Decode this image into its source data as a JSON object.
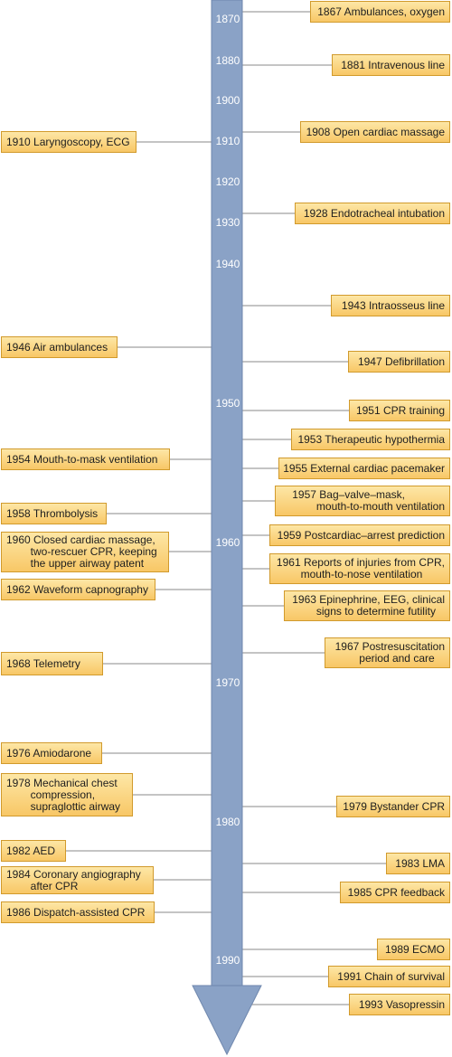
{
  "timeline": {
    "start_year": 1870,
    "end_year": 1990,
    "colors": {
      "axis": "#8aa2c6",
      "axis_edge": "#6f87ad",
      "box_fill": "#f9d27c",
      "box_border": "#d19a2c",
      "connector": "#8a8a8a"
    },
    "decade_labels": [
      "1870",
      "1880",
      "1900",
      "1910",
      "1920",
      "1930",
      "1940",
      "1950",
      "1960",
      "1970",
      "1980",
      "1990"
    ],
    "events_right": [
      {
        "text": "1867 Ambulances, oxygen"
      },
      {
        "text": "1881 Intravenous line"
      },
      {
        "text": "1908 Open cardiac massage"
      },
      {
        "text": "1928 Endotracheal intubation"
      },
      {
        "text": "1943 Intraosseus line"
      },
      {
        "text": "1947 Defibrillation"
      },
      {
        "text": "1951 CPR training"
      },
      {
        "text": "1953 Therapeutic hypothermia"
      },
      {
        "text": "1955 External cardiac pacemaker"
      },
      {
        "text": "1957 Bag–valve–mask,\n        mouth-to-mouth ventilation"
      },
      {
        "text": "1959 Postcardiac–arrest prediction"
      },
      {
        "text": "1961 Reports of injuries from CPR,\n        mouth-to-nose ventilation"
      },
      {
        "text": "1963 Epinephrine, EEG, clinical\n        signs to determine futility"
      },
      {
        "text": "1967 Postresuscitation\n        period and care"
      },
      {
        "text": "1979 Bystander CPR"
      },
      {
        "text": "1983 LMA"
      },
      {
        "text": "1985 CPR feedback"
      },
      {
        "text": "1989 ECMO"
      },
      {
        "text": "1991 Chain of survival"
      },
      {
        "text": "1993 Vasopressin"
      }
    ],
    "events_left": [
      {
        "text": "1910 Laryngoscopy, ECG"
      },
      {
        "text": "1946 Air ambulances"
      },
      {
        "text": "1954 Mouth-to-mask ventilation"
      },
      {
        "text": "1958 Thrombolysis"
      },
      {
        "text": "1960 Closed cardiac massage,\n        two-rescuer CPR, keeping\n        the upper airway patent"
      },
      {
        "text": "1962 Waveform capnography"
      },
      {
        "text": "1968 Telemetry"
      },
      {
        "text": "1976 Amiodarone"
      },
      {
        "text": "1978 Mechanical chest\n        compression,\n        supraglottic airway"
      },
      {
        "text": "1982 AED"
      },
      {
        "text": "1984 Coronary angiography\n        after CPR"
      },
      {
        "text": "1986 Dispatch-assisted CPR"
      }
    ]
  }
}
